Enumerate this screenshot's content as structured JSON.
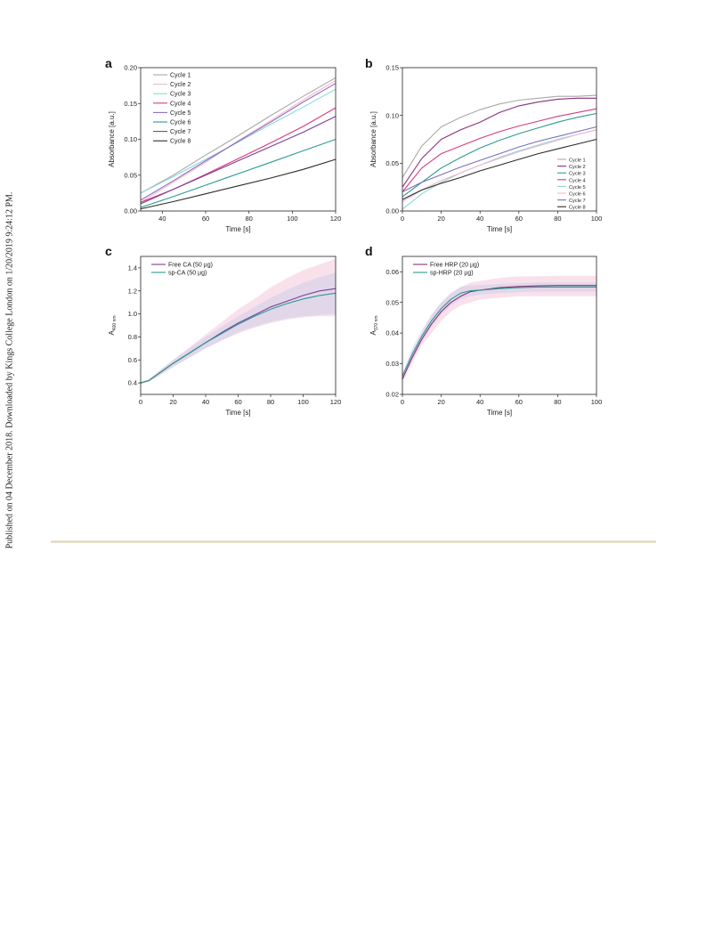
{
  "side_note": "Published on 04 December 2018. Downloaded by Kings College London on 1/20/2019 9:24:12 PM.",
  "chart_data": [
    {
      "panel": "a",
      "type": "line",
      "xlabel": "Time [s]",
      "ylabel": "Absorbance [a.u.]",
      "xlim": [
        30,
        120
      ],
      "ylim": [
        0,
        0.2
      ],
      "xticks": [
        40,
        60,
        80,
        100,
        120
      ],
      "yticks": [
        0.0,
        0.05,
        0.1,
        0.15,
        0.2
      ],
      "ytick_labels": [
        "0.00",
        "0.05",
        "0.10",
        "0.15",
        "0.20"
      ],
      "legend_position": "top-left",
      "grid": false,
      "series": [
        {
          "name": "Cycle 1",
          "color": "#a9a9a9",
          "x": [
            30,
            45,
            60,
            75,
            90,
            105,
            120
          ],
          "y": [
            0.025,
            0.05,
            0.078,
            0.105,
            0.133,
            0.16,
            0.186
          ]
        },
        {
          "name": "Cycle 2",
          "color": "#f4b6cc",
          "x": [
            30,
            45,
            60,
            75,
            90,
            105,
            120
          ],
          "y": [
            0.012,
            0.04,
            0.068,
            0.098,
            0.126,
            0.155,
            0.182
          ]
        },
        {
          "name": "Cycle 3",
          "color": "#8fd6d6",
          "x": [
            30,
            45,
            60,
            75,
            90,
            105,
            120
          ],
          "y": [
            0.025,
            0.048,
            0.072,
            0.096,
            0.121,
            0.145,
            0.17
          ]
        },
        {
          "name": "Cycle 4",
          "color": "#d63a7a",
          "x": [
            30,
            45,
            60,
            75,
            90,
            105,
            120
          ],
          "y": [
            0.012,
            0.03,
            0.051,
            0.073,
            0.095,
            0.118,
            0.144
          ]
        },
        {
          "name": "Cycle 5",
          "color": "#8a6ec2",
          "x": [
            30,
            45,
            60,
            75,
            90,
            105,
            120
          ],
          "y": [
            0.015,
            0.042,
            0.07,
            0.097,
            0.124,
            0.152,
            0.178
          ]
        },
        {
          "name": "Cycle 6",
          "color": "#2a9a92",
          "x": [
            30,
            45,
            60,
            75,
            90,
            105,
            120
          ],
          "y": [
            0.005,
            0.02,
            0.036,
            0.052,
            0.068,
            0.084,
            0.1
          ]
        },
        {
          "name": "Cycle 7",
          "color": "#7a3f98",
          "x": [
            30,
            45,
            60,
            75,
            90,
            105,
            120
          ],
          "y": [
            0.01,
            0.03,
            0.05,
            0.07,
            0.09,
            0.11,
            0.132
          ]
        },
        {
          "name": "Cycle 8",
          "color": "#2b2b2b",
          "x": [
            30,
            45,
            60,
            75,
            90,
            105,
            120
          ],
          "y": [
            0.003,
            0.013,
            0.024,
            0.035,
            0.046,
            0.058,
            0.072
          ]
        }
      ]
    },
    {
      "panel": "b",
      "type": "line",
      "xlabel": "Time [s]",
      "ylabel": "Absorbance [a.u.]",
      "xlim": [
        0,
        100
      ],
      "ylim": [
        0,
        0.15
      ],
      "xticks": [
        0,
        20,
        40,
        60,
        80,
        100
      ],
      "yticks": [
        0.0,
        0.05,
        0.1,
        0.15
      ],
      "ytick_labels": [
        "0.00",
        "0.05",
        "0.10",
        "0.15"
      ],
      "legend_position": "bottom-right",
      "grid": false,
      "series": [
        {
          "name": "Cycle 1",
          "color": "#a9a9a9",
          "x": [
            0,
            10,
            20,
            30,
            40,
            50,
            60,
            70,
            80,
            90,
            100
          ],
          "y": [
            0.035,
            0.068,
            0.088,
            0.098,
            0.106,
            0.112,
            0.116,
            0.118,
            0.12,
            0.12,
            0.121
          ]
        },
        {
          "name": "Cycle 2",
          "color": "#8a2f7a",
          "x": [
            0,
            10,
            20,
            30,
            40,
            50,
            60,
            70,
            80,
            90,
            100
          ],
          "y": [
            0.025,
            0.055,
            0.075,
            0.085,
            0.093,
            0.103,
            0.11,
            0.114,
            0.117,
            0.118,
            0.118
          ]
        },
        {
          "name": "Cycle 3",
          "color": "#2a9a92",
          "x": [
            0,
            10,
            20,
            30,
            40,
            50,
            60,
            70,
            80,
            90,
            100
          ],
          "y": [
            0.015,
            0.03,
            0.045,
            0.056,
            0.066,
            0.074,
            0.081,
            0.087,
            0.093,
            0.098,
            0.102
          ]
        },
        {
          "name": "Cycle 4",
          "color": "#d63a7a",
          "x": [
            0,
            10,
            20,
            30,
            40,
            50,
            60,
            70,
            80,
            90,
            100
          ],
          "y": [
            0.02,
            0.045,
            0.06,
            0.068,
            0.076,
            0.083,
            0.089,
            0.094,
            0.099,
            0.103,
            0.107
          ]
        },
        {
          "name": "Cycle 5",
          "color": "#8fd6d6",
          "x": [
            0,
            10,
            20,
            30,
            40,
            50,
            60,
            70,
            80,
            90,
            100
          ],
          "y": [
            0.002,
            0.018,
            0.03,
            0.04,
            0.048,
            0.056,
            0.063,
            0.069,
            0.075,
            0.08,
            0.085
          ]
        },
        {
          "name": "Cycle 6",
          "color": "#f4b6cc",
          "x": [
            0,
            10,
            20,
            30,
            40,
            50,
            60,
            70,
            80,
            90,
            100
          ],
          "y": [
            0.01,
            0.022,
            0.032,
            0.04,
            0.048,
            0.055,
            0.062,
            0.068,
            0.074,
            0.08,
            0.085
          ]
        },
        {
          "name": "Cycle 7",
          "color": "#7a6ec2",
          "x": [
            0,
            10,
            20,
            30,
            40,
            50,
            60,
            70,
            80,
            90,
            100
          ],
          "y": [
            0.02,
            0.03,
            0.038,
            0.046,
            0.053,
            0.06,
            0.067,
            0.073,
            0.078,
            0.083,
            0.088
          ]
        },
        {
          "name": "Cycle 8",
          "color": "#2b2b2b",
          "x": [
            0,
            10,
            20,
            30,
            40,
            50,
            60,
            70,
            80,
            90,
            100
          ],
          "y": [
            0.012,
            0.022,
            0.029,
            0.035,
            0.042,
            0.048,
            0.054,
            0.06,
            0.065,
            0.07,
            0.075
          ]
        }
      ]
    },
    {
      "panel": "c",
      "type": "line",
      "xlabel": "Time [s]",
      "ylabel_main": "A",
      "ylabel_sub": "400 nm",
      "xlim": [
        0,
        120
      ],
      "ylim": [
        0.3,
        1.5
      ],
      "xticks": [
        0,
        20,
        40,
        60,
        80,
        100,
        120
      ],
      "yticks": [
        0.4,
        0.6,
        0.8,
        1.0,
        1.2,
        1.4
      ],
      "ytick_labels": [
        "0.4",
        "0.6",
        "0.8",
        "1.0",
        "1.2",
        "1.4"
      ],
      "legend_position": "top-left",
      "grid": false,
      "series": [
        {
          "name": "Free CA (50 µg)",
          "color": "#7a3f98",
          "band_color": "#f2bcd4",
          "x": [
            0,
            5,
            10,
            20,
            30,
            40,
            50,
            60,
            70,
            80,
            90,
            100,
            110,
            120
          ],
          "y": [
            0.4,
            0.42,
            0.47,
            0.57,
            0.66,
            0.75,
            0.84,
            0.92,
            0.99,
            1.06,
            1.11,
            1.16,
            1.2,
            1.22
          ],
          "lower": [
            0.39,
            0.41,
            0.45,
            0.54,
            0.62,
            0.7,
            0.77,
            0.83,
            0.88,
            0.92,
            0.95,
            0.97,
            0.98,
            0.98
          ],
          "upper": [
            0.41,
            0.43,
            0.49,
            0.6,
            0.71,
            0.82,
            0.93,
            1.04,
            1.13,
            1.23,
            1.31,
            1.38,
            1.43,
            1.48
          ]
        },
        {
          "name": "sp-CA (50 µg)",
          "color": "#2a9a92",
          "band_color": "#c5cbe6",
          "x": [
            0,
            5,
            10,
            20,
            30,
            40,
            50,
            60,
            70,
            80,
            90,
            100,
            110,
            120
          ],
          "y": [
            0.4,
            0.42,
            0.47,
            0.57,
            0.66,
            0.75,
            0.83,
            0.91,
            0.98,
            1.04,
            1.09,
            1.13,
            1.16,
            1.18
          ],
          "lower": [
            0.39,
            0.41,
            0.45,
            0.54,
            0.62,
            0.7,
            0.77,
            0.84,
            0.89,
            0.93,
            0.96,
            0.98,
            0.99,
            1.0
          ],
          "upper": [
            0.41,
            0.43,
            0.49,
            0.6,
            0.7,
            0.8,
            0.89,
            0.98,
            1.06,
            1.14,
            1.21,
            1.27,
            1.32,
            1.36
          ]
        }
      ]
    },
    {
      "panel": "d",
      "type": "line",
      "xlabel": "Time [s]",
      "ylabel_main": "A",
      "ylabel_sub": "370 nm",
      "xlim": [
        0,
        100
      ],
      "ylim": [
        0.02,
        0.065
      ],
      "xticks": [
        0,
        20,
        40,
        60,
        80,
        100
      ],
      "yticks": [
        0.02,
        0.03,
        0.04,
        0.05,
        0.06
      ],
      "ytick_labels": [
        "0.02",
        "0.03",
        "0.04",
        "0.05",
        "0.06"
      ],
      "legend_position": "top-left",
      "grid": false,
      "series": [
        {
          "name": "Free HRP (20 µg)",
          "color": "#8a2f7a",
          "band_color": "#f2bcd4",
          "x": [
            0,
            5,
            10,
            15,
            20,
            25,
            30,
            35,
            40,
            50,
            60,
            70,
            80,
            90,
            100
          ],
          "y": [
            0.025,
            0.032,
            0.038,
            0.043,
            0.047,
            0.05,
            0.052,
            0.0535,
            0.054,
            0.0548,
            0.0552,
            0.0554,
            0.0555,
            0.0555,
            0.0555
          ],
          "lower": [
            0.024,
            0.03,
            0.036,
            0.04,
            0.044,
            0.047,
            0.049,
            0.05,
            0.051,
            0.0515,
            0.052,
            0.052,
            0.052,
            0.052,
            0.052
          ],
          "upper": [
            0.026,
            0.034,
            0.04,
            0.046,
            0.05,
            0.053,
            0.055,
            0.0565,
            0.057,
            0.058,
            0.0585,
            0.0585,
            0.0587,
            0.0587,
            0.0587
          ]
        },
        {
          "name": "sp-HRP (20 µg)",
          "color": "#2a9a92",
          "band_color": "#c5cbe6",
          "x": [
            0,
            5,
            10,
            15,
            20,
            25,
            30,
            35,
            40,
            50,
            60,
            70,
            80,
            90,
            100
          ],
          "y": [
            0.026,
            0.033,
            0.039,
            0.044,
            0.048,
            0.051,
            0.053,
            0.0538,
            0.054,
            0.0545,
            0.0548,
            0.055,
            0.055,
            0.055,
            0.055
          ],
          "lower": [
            0.025,
            0.031,
            0.037,
            0.042,
            0.046,
            0.049,
            0.051,
            0.052,
            0.0525,
            0.053,
            0.0533,
            0.0535,
            0.0535,
            0.0535,
            0.0535
          ],
          "upper": [
            0.027,
            0.035,
            0.041,
            0.046,
            0.05,
            0.053,
            0.055,
            0.0556,
            0.0557,
            0.056,
            0.0563,
            0.0565,
            0.0565,
            0.0565,
            0.0565
          ]
        }
      ]
    }
  ]
}
